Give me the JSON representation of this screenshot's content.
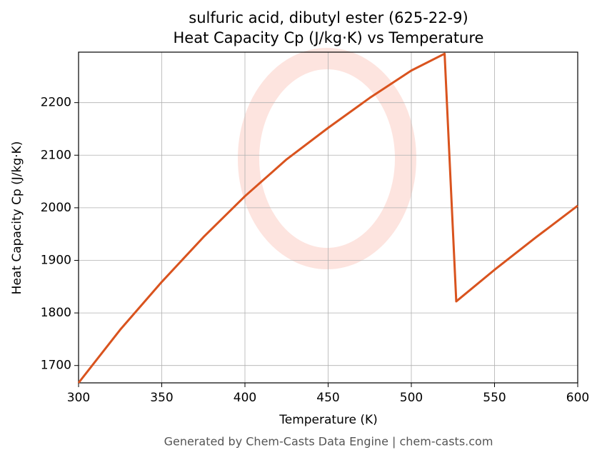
{
  "chart_data": {
    "type": "line",
    "title": "sulfuric acid, dibutyl ester (625-22-9)",
    "subtitle": "Heat Capacity Cp (J/kg·K) vs Temperature",
    "x_label": "Temperature (K)",
    "y_label": "Heat Capacity Cp (J/kg·K)",
    "footer": "Generated by Chem-Casts Data Engine | chem-casts.com",
    "x": [
      300,
      325,
      350,
      375,
      400,
      425,
      450,
      475,
      500,
      520,
      527,
      550,
      575,
      600
    ],
    "series": [
      {
        "name": "Cp",
        "color": "#d9531e",
        "values": [
          1667,
          1768,
          1859,
          1944,
          2022,
          2092,
          2152,
          2209,
          2261,
          2293,
          1822,
          1882,
          1944,
          2004
        ]
      }
    ],
    "xlim": [
      300,
      600
    ],
    "xticks": [
      300,
      350,
      400,
      450,
      500,
      550,
      600
    ],
    "ylim": [
      1667,
      2296
    ],
    "yticks": [
      1700,
      1800,
      1900,
      2000,
      2100,
      2200
    ],
    "grid": true
  }
}
